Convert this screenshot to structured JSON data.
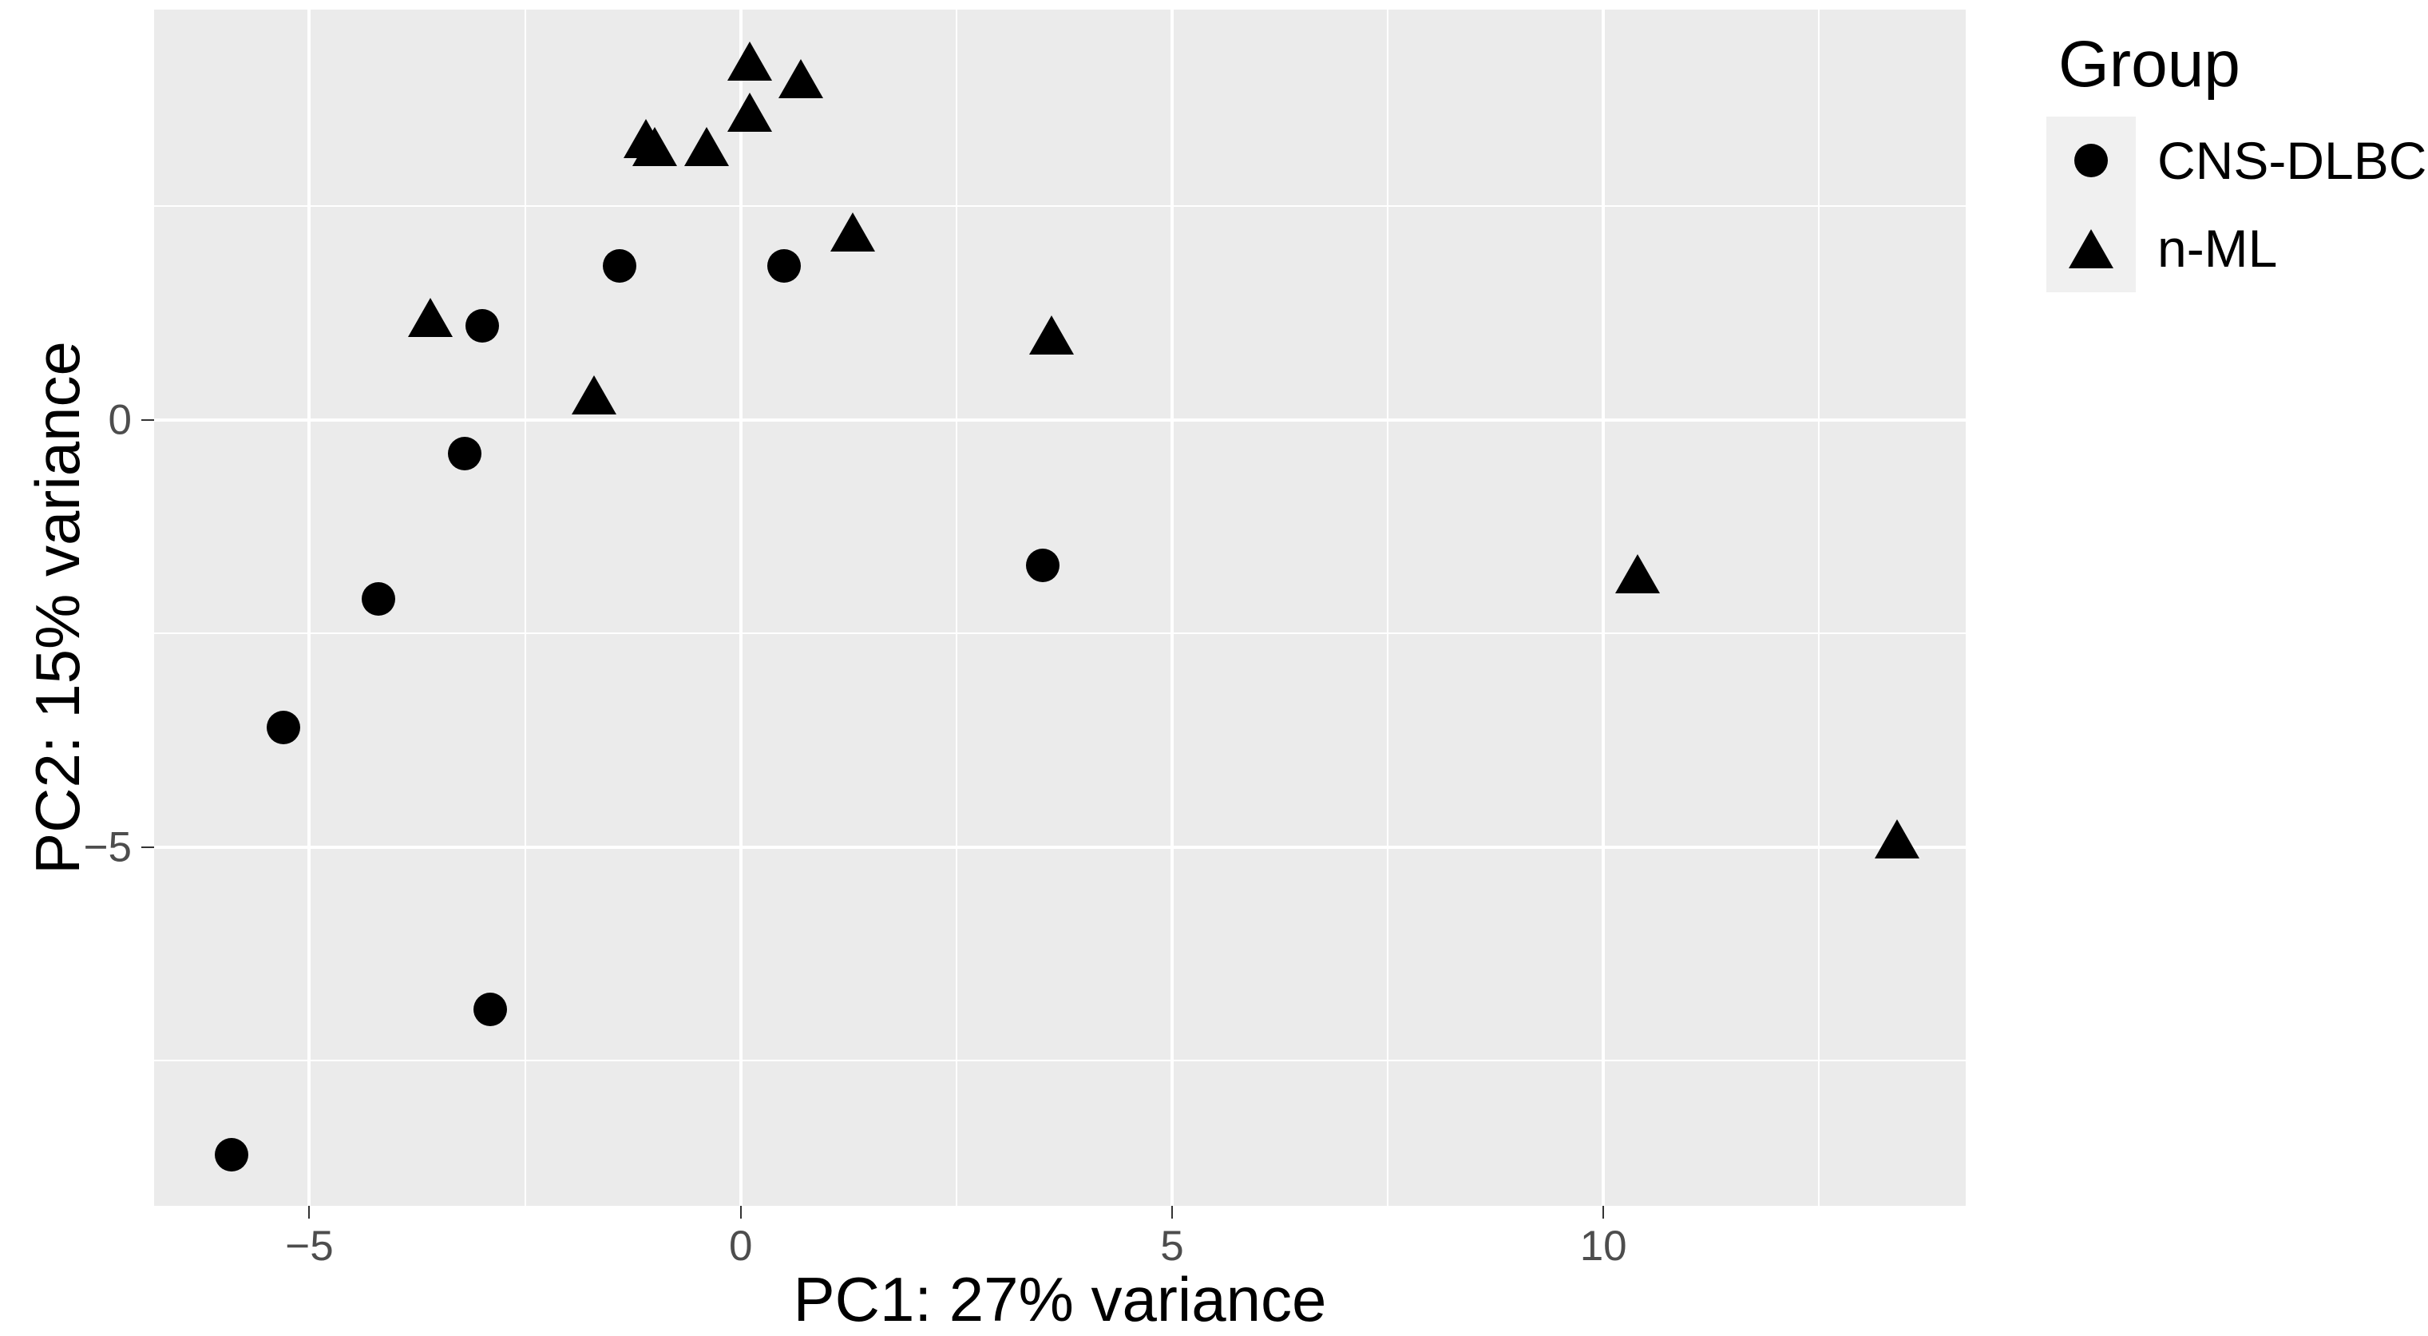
{
  "chart_data": {
    "type": "scatter",
    "title": "",
    "xlabel": "PC1: 27% variance",
    "ylabel": "PC2: 15% variance",
    "xlim": [
      -6.8,
      14.2
    ],
    "ylim": [
      -9.2,
      4.8
    ],
    "x_ticks": [
      -5,
      0,
      5,
      10
    ],
    "x_tick_labels": [
      "−5",
      "0",
      "5",
      "10"
    ],
    "y_ticks": [
      0,
      -5
    ],
    "y_tick_labels": [
      "0",
      "−5"
    ],
    "x_minor_ticks": [
      -2.5,
      2.5,
      7.5,
      12.5
    ],
    "y_minor_ticks": [
      2.5,
      -2.5,
      -7.5
    ],
    "grid": true,
    "legend_position": "right",
    "legend_title": "Group",
    "series": [
      {
        "name": "CNS-DLBCL",
        "marker": "circle",
        "points": [
          [
            -1.4,
            1.8
          ],
          [
            0.5,
            1.8
          ],
          [
            -3.0,
            1.1
          ],
          [
            -3.2,
            -0.4
          ],
          [
            -4.2,
            -2.1
          ],
          [
            3.5,
            -1.7
          ],
          [
            -5.3,
            -3.6
          ],
          [
            -2.9,
            -6.9
          ],
          [
            -5.9,
            -8.6
          ]
        ]
      },
      {
        "name": "n-ML",
        "marker": "triangle",
        "points": [
          [
            0.1,
            4.2
          ],
          [
            0.7,
            4.0
          ],
          [
            0.1,
            3.6
          ],
          [
            -1.1,
            3.3
          ],
          [
            -1.0,
            3.2
          ],
          [
            -0.4,
            3.2
          ],
          [
            1.3,
            2.2
          ],
          [
            -3.6,
            1.2
          ],
          [
            -1.7,
            0.3
          ],
          [
            3.6,
            1.0
          ],
          [
            10.4,
            -1.8
          ],
          [
            13.4,
            -4.9
          ]
        ]
      }
    ],
    "colors": {
      "point": "#000000",
      "panel_bg": "#EBEBEB",
      "grid": "#FFFFFF",
      "tick_text": "#4D4D4D",
      "axis_title_text": "#000000"
    }
  },
  "legend": {
    "title": "Group",
    "items": [
      {
        "label": "CNS-DLBCL",
        "marker": "circle"
      },
      {
        "label": "n-ML",
        "marker": "triangle"
      }
    ]
  }
}
